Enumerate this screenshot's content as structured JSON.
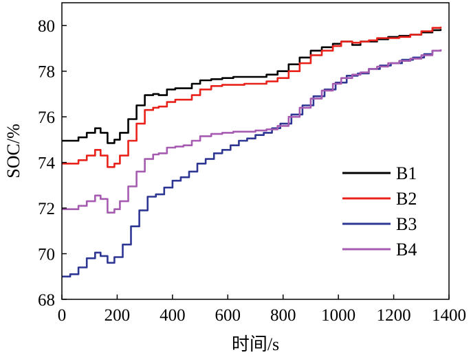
{
  "chart_data": {
    "type": "line",
    "xlabel": "时间/s",
    "ylabel": "SOC/%",
    "xlim": [
      0,
      1400
    ],
    "ylim": [
      68,
      81
    ],
    "xticks": [
      0,
      200,
      400,
      600,
      800,
      1000,
      1200,
      1400
    ],
    "yticks": [
      68,
      70,
      72,
      74,
      76,
      78,
      80
    ],
    "legend": "right",
    "grid": false,
    "series": [
      {
        "name": "B1",
        "color": "#000000",
        "points": [
          [
            0,
            74.95
          ],
          [
            30,
            74.95
          ],
          [
            60,
            75.1
          ],
          [
            90,
            75.3
          ],
          [
            120,
            75.5
          ],
          [
            140,
            75.3
          ],
          [
            165,
            74.85
          ],
          [
            190,
            75.0
          ],
          [
            210,
            75.3
          ],
          [
            240,
            75.9
          ],
          [
            270,
            76.5
          ],
          [
            300,
            76.95
          ],
          [
            330,
            77.0
          ],
          [
            350,
            76.95
          ],
          [
            380,
            77.2
          ],
          [
            410,
            77.25
          ],
          [
            440,
            77.25
          ],
          [
            470,
            77.45
          ],
          [
            500,
            77.6
          ],
          [
            540,
            77.65
          ],
          [
            580,
            77.7
          ],
          [
            620,
            77.75
          ],
          [
            660,
            77.75
          ],
          [
            700,
            77.75
          ],
          [
            740,
            77.85
          ],
          [
            780,
            78.0
          ],
          [
            820,
            78.3
          ],
          [
            860,
            78.6
          ],
          [
            900,
            78.9
          ],
          [
            940,
            79.05
          ],
          [
            980,
            79.2
          ],
          [
            1010,
            79.3
          ],
          [
            1050,
            79.15
          ],
          [
            1080,
            79.3
          ],
          [
            1110,
            79.3
          ],
          [
            1140,
            79.4
          ],
          [
            1180,
            79.5
          ],
          [
            1220,
            79.55
          ],
          [
            1260,
            79.6
          ],
          [
            1300,
            79.7
          ],
          [
            1340,
            79.8
          ],
          [
            1370,
            79.85
          ]
        ]
      },
      {
        "name": "B2",
        "color": "#e8221b",
        "points": [
          [
            0,
            73.95
          ],
          [
            30,
            73.95
          ],
          [
            60,
            74.1
          ],
          [
            90,
            74.3
          ],
          [
            120,
            74.55
          ],
          [
            140,
            74.3
          ],
          [
            165,
            73.8
          ],
          [
            190,
            73.95
          ],
          [
            210,
            74.3
          ],
          [
            240,
            74.95
          ],
          [
            270,
            75.7
          ],
          [
            300,
            76.3
          ],
          [
            330,
            76.4
          ],
          [
            350,
            76.45
          ],
          [
            380,
            76.65
          ],
          [
            410,
            76.75
          ],
          [
            440,
            76.75
          ],
          [
            470,
            76.95
          ],
          [
            500,
            77.2
          ],
          [
            540,
            77.35
          ],
          [
            580,
            77.4
          ],
          [
            620,
            77.4
          ],
          [
            660,
            77.45
          ],
          [
            700,
            77.45
          ],
          [
            740,
            77.55
          ],
          [
            780,
            77.7
          ],
          [
            820,
            78.0
          ],
          [
            860,
            78.35
          ],
          [
            900,
            78.7
          ],
          [
            940,
            78.9
          ],
          [
            980,
            79.1
          ],
          [
            1010,
            79.3
          ],
          [
            1050,
            79.25
          ],
          [
            1080,
            79.3
          ],
          [
            1110,
            79.35
          ],
          [
            1140,
            79.45
          ],
          [
            1180,
            79.45
          ],
          [
            1220,
            79.5
          ],
          [
            1260,
            79.6
          ],
          [
            1300,
            79.75
          ],
          [
            1340,
            79.9
          ],
          [
            1370,
            79.95
          ]
        ]
      },
      {
        "name": "B3",
        "color": "#2e3694",
        "points": [
          [
            0,
            69.0
          ],
          [
            30,
            69.1
          ],
          [
            60,
            69.4
          ],
          [
            90,
            69.8
          ],
          [
            120,
            70.05
          ],
          [
            140,
            69.9
          ],
          [
            165,
            69.6
          ],
          [
            190,
            69.85
          ],
          [
            220,
            70.4
          ],
          [
            250,
            71.2
          ],
          [
            280,
            71.9
          ],
          [
            310,
            72.5
          ],
          [
            340,
            72.6
          ],
          [
            370,
            72.9
          ],
          [
            400,
            73.2
          ],
          [
            430,
            73.35
          ],
          [
            460,
            73.6
          ],
          [
            490,
            73.95
          ],
          [
            520,
            74.15
          ],
          [
            550,
            74.4
          ],
          [
            580,
            74.55
          ],
          [
            610,
            74.75
          ],
          [
            640,
            74.95
          ],
          [
            670,
            75.05
          ],
          [
            700,
            75.2
          ],
          [
            730,
            75.3
          ],
          [
            760,
            75.5
          ],
          [
            790,
            75.7
          ],
          [
            830,
            76.1
          ],
          [
            870,
            76.5
          ],
          [
            910,
            76.9
          ],
          [
            950,
            77.2
          ],
          [
            990,
            77.5
          ],
          [
            1030,
            77.8
          ],
          [
            1070,
            77.9
          ],
          [
            1110,
            78.1
          ],
          [
            1150,
            78.25
          ],
          [
            1190,
            78.35
          ],
          [
            1230,
            78.5
          ],
          [
            1270,
            78.6
          ],
          [
            1310,
            78.75
          ],
          [
            1340,
            78.9
          ],
          [
            1370,
            78.95
          ]
        ]
      },
      {
        "name": "B4",
        "color": "#a55bb0",
        "points": [
          [
            0,
            71.95
          ],
          [
            30,
            71.95
          ],
          [
            60,
            72.1
          ],
          [
            90,
            72.3
          ],
          [
            120,
            72.55
          ],
          [
            140,
            72.4
          ],
          [
            165,
            71.8
          ],
          [
            190,
            71.95
          ],
          [
            210,
            72.3
          ],
          [
            240,
            72.95
          ],
          [
            270,
            73.6
          ],
          [
            300,
            74.15
          ],
          [
            330,
            74.35
          ],
          [
            350,
            74.4
          ],
          [
            380,
            74.65
          ],
          [
            410,
            74.7
          ],
          [
            440,
            74.75
          ],
          [
            470,
            74.95
          ],
          [
            500,
            75.15
          ],
          [
            540,
            75.25
          ],
          [
            580,
            75.3
          ],
          [
            620,
            75.35
          ],
          [
            660,
            75.35
          ],
          [
            700,
            75.4
          ],
          [
            740,
            75.45
          ],
          [
            780,
            75.6
          ],
          [
            820,
            76.0
          ],
          [
            860,
            76.4
          ],
          [
            900,
            76.8
          ],
          [
            940,
            77.15
          ],
          [
            980,
            77.45
          ],
          [
            1010,
            77.7
          ],
          [
            1050,
            77.85
          ],
          [
            1080,
            77.95
          ],
          [
            1110,
            78.1
          ],
          [
            1140,
            78.2
          ],
          [
            1180,
            78.35
          ],
          [
            1220,
            78.45
          ],
          [
            1260,
            78.55
          ],
          [
            1300,
            78.7
          ],
          [
            1340,
            78.9
          ],
          [
            1370,
            78.95
          ]
        ]
      }
    ]
  }
}
